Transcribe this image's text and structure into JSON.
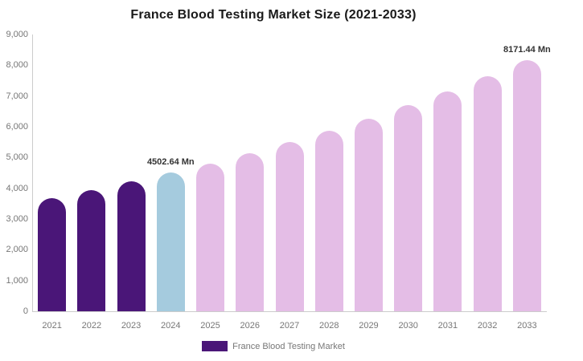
{
  "title": "France Blood Testing Market Size (2021-2033)",
  "legend": {
    "label": "France Blood Testing Market",
    "swatch_color": "#4A1678"
  },
  "colors": {
    "historical_bar": "#4A1678",
    "base_year_bar": "#A5CBDE",
    "forecast_bar": "#E4BDE6",
    "axis_line": "#cccccc",
    "tick_text": "#767676",
    "value_label_text": "#333333",
    "title_text": "#1a1a1a"
  },
  "chart_data": {
    "type": "bar",
    "title": "France Blood Testing Market Size (2021-2033)",
    "xlabel": "",
    "ylabel": "",
    "categories": [
      "2021",
      "2022",
      "2023",
      "2024",
      "2025",
      "2026",
      "2027",
      "2028",
      "2029",
      "2030",
      "2031",
      "2032",
      "2033"
    ],
    "values": [
      3691,
      3944,
      4214,
      4502.64,
      4811,
      5140,
      5492,
      5869,
      6270,
      6700,
      7158,
      7649,
      8171.44
    ],
    "bar_colors": [
      "#4A1678",
      "#4A1678",
      "#4A1678",
      "#A5CBDE",
      "#E4BDE6",
      "#E4BDE6",
      "#E4BDE6",
      "#E4BDE6",
      "#E4BDE6",
      "#E4BDE6",
      "#E4BDE6",
      "#E4BDE6",
      "#E4BDE6"
    ],
    "unit": "Mn",
    "ylim": [
      0,
      9000
    ],
    "ytick_step": 1000,
    "ytick_labels": [
      "0",
      "1,000",
      "2,000",
      "3,000",
      "4,000",
      "5,000",
      "6,000",
      "7,000",
      "8,000",
      "9,000"
    ],
    "grid": false,
    "legend_position": "bottom",
    "annotations": [
      {
        "category": "2024",
        "index": 3,
        "text": "4502.64 Mn"
      },
      {
        "category": "2033",
        "index": 12,
        "text": "8171.44 Mn"
      }
    ]
  }
}
